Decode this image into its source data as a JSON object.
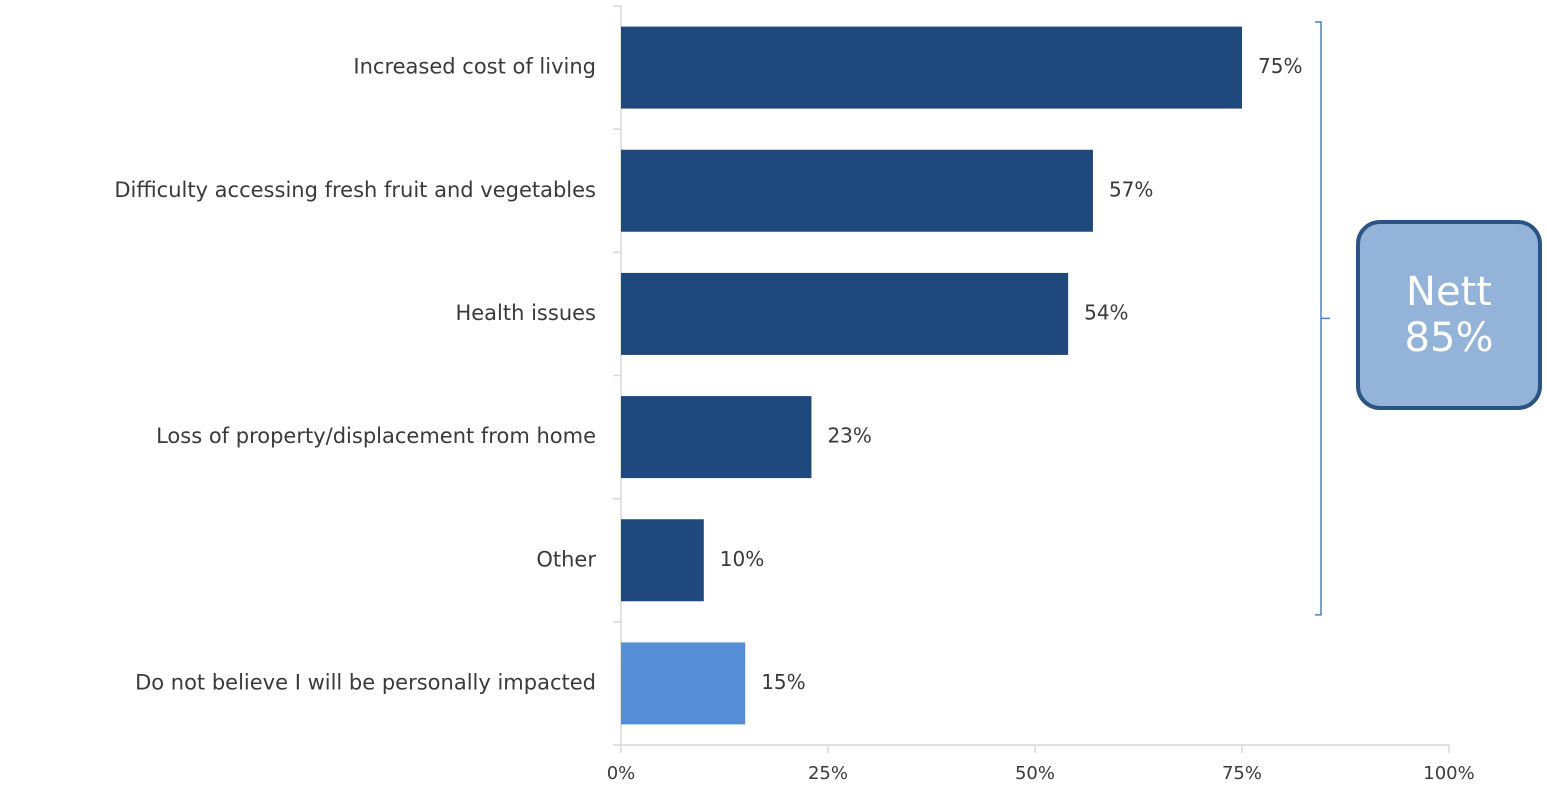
{
  "chart_data": {
    "type": "bar",
    "orientation": "horizontal",
    "categories": [
      "Increased cost of living",
      "Difficulty accessing fresh fruit and vegetables",
      "Health issues",
      "Loss of property/displacement from home",
      "Other",
      "Do not believe I will be personally impacted"
    ],
    "values": [
      75,
      57,
      54,
      23,
      10,
      15
    ],
    "data_labels": [
      "75%",
      "57%",
      "54%",
      "23%",
      "10%",
      "15%"
    ],
    "bar_colors": [
      "#1f497d",
      "#1f497d",
      "#1f497d",
      "#1f497d",
      "#1f497d",
      "#558ed5"
    ],
    "xlim": [
      0,
      100
    ],
    "x_ticks": [
      0,
      25,
      50,
      75,
      100
    ],
    "x_tick_labels": [
      "0%",
      "25%",
      "50%",
      "75%",
      "100%"
    ],
    "grid": false,
    "title": "",
    "xlabel": "",
    "ylabel": "",
    "axis_color": "#d9d9d9",
    "annotation": {
      "bracket_covers_categories": [
        "Increased cost of living",
        "Difficulty accessing fresh fruit and vegetables",
        "Health issues",
        "Loss of property/displacement from home",
        "Other"
      ],
      "bracket_color": "#4f81bd",
      "label_line1": "Nett",
      "label_line2": "85%",
      "fill_color": "#93b3d8",
      "border_color": "#2c5483"
    }
  }
}
